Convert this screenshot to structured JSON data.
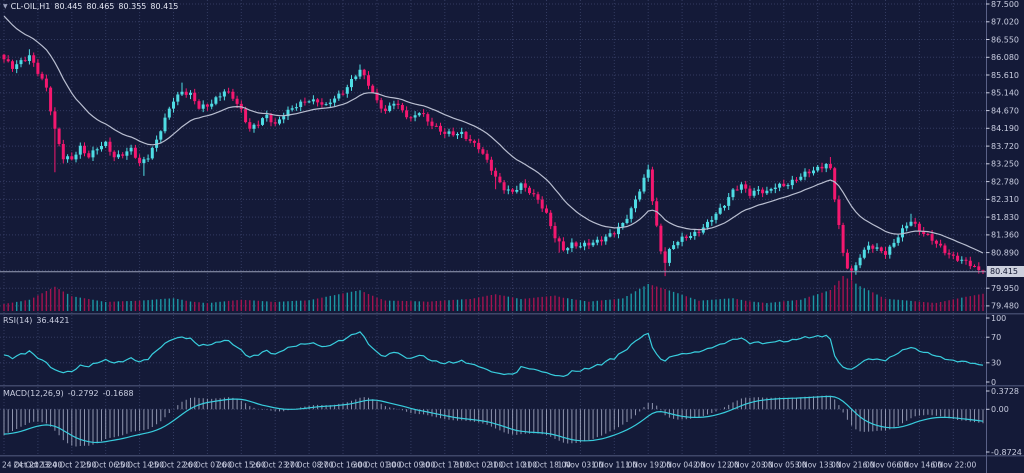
{
  "header": {
    "collapse_icon": "▼",
    "symbol_period": "CL-OIL,H1",
    "open": "80.445",
    "high": "80.465",
    "low": "80.355",
    "close": "80.415"
  },
  "price_axis": {
    "ticks": [
      "87.500",
      "87.020",
      "86.550",
      "86.080",
      "85.610",
      "85.140",
      "84.670",
      "84.190",
      "83.720",
      "83.250",
      "82.780",
      "82.310",
      "81.830",
      "81.360",
      "80.890",
      "79.950",
      "79.480"
    ],
    "badge": "80.415",
    "badge_slot": 15
  },
  "time_axis": {
    "labels": [
      "24 Oct 2023",
      "24 Oct 13:00",
      "24 Oct 21:00",
      "25 Oct 06:00",
      "25 Oct 14:00",
      "25 Oct 22:00",
      "26 Oct 07:00",
      "26 Oct 15:00",
      "26 Oct 23:00",
      "27 Oct 08:00",
      "27 Oct 16:00",
      "30 Oct 01:00",
      "30 Oct 09:00",
      "30 Oct 17:00",
      "31 Oct 02:00",
      "31 Oct 10:00",
      "31 Oct 18:00",
      "1 Nov 03:00",
      "1 Nov 11:00",
      "1 Nov 19:00",
      "2 Nov 04:00",
      "2 Nov 12:00",
      "2 Nov 20:00",
      "3 Nov 05:00",
      "3 Nov 13:00",
      "3 Nov 21:00",
      "6 Nov 06:00",
      "6 Nov 14:00",
      "6 Nov 22:00"
    ]
  },
  "rsi_pane": {
    "name": "RSI(14)",
    "value": "36.4421",
    "levels": [
      "100",
      "70",
      "30",
      "0"
    ]
  },
  "macd_pane": {
    "name": "MACD(12,26,9)",
    "macd_value": "-0.2792",
    "signal_value": "-0.1688",
    "axis": [
      "0.3728",
      "0.00",
      "-0.8724"
    ]
  },
  "colors": {
    "bg": "#141a38",
    "grid": "#333b61",
    "axis_text": "#c9cde0",
    "bull": "#4fdce4",
    "bear": "#f4186f",
    "vol_bull": "#1b97a4",
    "vol_bear": "#a3134f",
    "ma": "#b9bed0",
    "rsi_line": "#38cddd",
    "macd_line": "#38cddd",
    "macd_hist": "#aeb4cc",
    "price_line": "#9aa0b8",
    "badge_bg": "#ccd0dd",
    "badge_text": "#131832",
    "separator": "#3f4769"
  },
  "chart_data": {
    "type": "candlestick",
    "symbol": "CL-OIL",
    "timeframe": "H1",
    "title": "CL-OIL,H1 80.445 80.465 80.355 80.415",
    "last_ohlc": {
      "open": 80.445,
      "high": 80.465,
      "low": 80.355,
      "close": 80.415
    },
    "price_axis_range": [
      79.29,
      87.5
    ],
    "price_tick_step": 0.47,
    "current_price": 80.415,
    "candles_count": 232,
    "close_waypoints": [
      [
        0,
        86.0
      ],
      [
        2,
        85.82
      ],
      [
        4,
        86.02
      ],
      [
        6,
        86.12
      ],
      [
        8,
        85.66
      ],
      [
        10,
        85.28
      ],
      [
        12,
        84.2
      ],
      [
        14,
        83.42
      ],
      [
        16,
        83.36
      ],
      [
        18,
        83.72
      ],
      [
        20,
        83.5
      ],
      [
        22,
        83.66
      ],
      [
        24,
        83.78
      ],
      [
        26,
        83.48
      ],
      [
        28,
        83.55
      ],
      [
        30,
        83.62
      ],
      [
        32,
        83.26
      ],
      [
        34,
        83.5
      ],
      [
        36,
        83.9
      ],
      [
        38,
        84.42
      ],
      [
        40,
        84.96
      ],
      [
        42,
        85.22
      ],
      [
        44,
        85.1
      ],
      [
        46,
        84.72
      ],
      [
        48,
        84.82
      ],
      [
        50,
        85.02
      ],
      [
        52,
        85.18
      ],
      [
        54,
        85.0
      ],
      [
        56,
        84.7
      ],
      [
        58,
        84.22
      ],
      [
        60,
        84.32
      ],
      [
        62,
        84.52
      ],
      [
        64,
        84.34
      ],
      [
        66,
        84.6
      ],
      [
        68,
        84.7
      ],
      [
        70,
        84.86
      ],
      [
        72,
        85.0
      ],
      [
        74,
        84.92
      ],
      [
        76,
        84.76
      ],
      [
        78,
        85.02
      ],
      [
        80,
        85.2
      ],
      [
        82,
        85.46
      ],
      [
        84,
        85.72
      ],
      [
        86,
        85.4
      ],
      [
        88,
        84.96
      ],
      [
        90,
        84.62
      ],
      [
        92,
        84.88
      ],
      [
        94,
        84.7
      ],
      [
        96,
        84.48
      ],
      [
        98,
        84.62
      ],
      [
        100,
        84.38
      ],
      [
        102,
        84.26
      ],
      [
        104,
        84.1
      ],
      [
        106,
        84.02
      ],
      [
        108,
        84.06
      ],
      [
        110,
        83.92
      ],
      [
        112,
        83.7
      ],
      [
        114,
        83.3
      ],
      [
        116,
        82.92
      ],
      [
        118,
        82.66
      ],
      [
        120,
        82.5
      ],
      [
        122,
        82.68
      ],
      [
        124,
        82.56
      ],
      [
        126,
        82.36
      ],
      [
        128,
        81.9
      ],
      [
        130,
        81.3
      ],
      [
        132,
        81.04
      ],
      [
        134,
        81.16
      ],
      [
        136,
        81.06
      ],
      [
        138,
        81.14
      ],
      [
        140,
        81.26
      ],
      [
        142,
        81.34
      ],
      [
        144,
        81.42
      ],
      [
        146,
        81.68
      ],
      [
        148,
        82.1
      ],
      [
        150,
        82.58
      ],
      [
        152,
        83.08
      ],
      [
        153,
        82.3
      ],
      [
        154,
        81.6
      ],
      [
        155,
        81.0
      ],
      [
        156,
        80.72
      ],
      [
        157,
        80.98
      ],
      [
        158,
        81.12
      ],
      [
        160,
        81.26
      ],
      [
        162,
        81.4
      ],
      [
        164,
        81.52
      ],
      [
        166,
        81.66
      ],
      [
        168,
        81.92
      ],
      [
        170,
        82.24
      ],
      [
        172,
        82.58
      ],
      [
        174,
        82.66
      ],
      [
        176,
        82.46
      ],
      [
        178,
        82.62
      ],
      [
        180,
        82.52
      ],
      [
        182,
        82.64
      ],
      [
        184,
        82.7
      ],
      [
        186,
        82.84
      ],
      [
        188,
        82.94
      ],
      [
        190,
        83.02
      ],
      [
        192,
        83.16
      ],
      [
        194,
        83.3
      ],
      [
        195,
        83.12
      ],
      [
        196,
        82.35
      ],
      [
        197,
        81.6
      ],
      [
        198,
        80.85
      ],
      [
        199,
        80.55
      ],
      [
        200,
        80.45
      ],
      [
        201,
        80.6
      ],
      [
        202,
        80.86
      ],
      [
        204,
        81.06
      ],
      [
        206,
        81.0
      ],
      [
        208,
        80.94
      ],
      [
        210,
        81.2
      ],
      [
        212,
        81.48
      ],
      [
        214,
        81.76
      ],
      [
        216,
        81.56
      ],
      [
        218,
        81.36
      ],
      [
        220,
        81.12
      ],
      [
        222,
        80.96
      ],
      [
        224,
        80.84
      ],
      [
        226,
        80.7
      ],
      [
        228,
        80.58
      ],
      [
        230,
        80.46
      ],
      [
        231,
        80.415
      ]
    ],
    "wick_spikes": [
      {
        "i": 6,
        "h": 86.3
      },
      {
        "i": 12,
        "l": 83.05
      },
      {
        "i": 33,
        "l": 82.95
      },
      {
        "i": 42,
        "h": 85.42
      },
      {
        "i": 84,
        "h": 85.9
      },
      {
        "i": 116,
        "l": 82.6
      },
      {
        "i": 131,
        "l": 80.92
      },
      {
        "i": 152,
        "h": 83.25
      },
      {
        "i": 156,
        "l": 80.3
      },
      {
        "i": 195,
        "h": 83.45
      },
      {
        "i": 200,
        "l": 80.18
      },
      {
        "i": 214,
        "h": 81.95
      }
    ],
    "volume_waypoints": [
      [
        0,
        7
      ],
      [
        6,
        10
      ],
      [
        12,
        22
      ],
      [
        16,
        12
      ],
      [
        24,
        6
      ],
      [
        32,
        8
      ],
      [
        40,
        12
      ],
      [
        48,
        7
      ],
      [
        56,
        9
      ],
      [
        64,
        6
      ],
      [
        72,
        8
      ],
      [
        84,
        20
      ],
      [
        90,
        10
      ],
      [
        100,
        7
      ],
      [
        110,
        9
      ],
      [
        116,
        14
      ],
      [
        122,
        10
      ],
      [
        130,
        15
      ],
      [
        138,
        8
      ],
      [
        146,
        10
      ],
      [
        152,
        24
      ],
      [
        156,
        19
      ],
      [
        164,
        8
      ],
      [
        172,
        12
      ],
      [
        180,
        7
      ],
      [
        188,
        9
      ],
      [
        195,
        18
      ],
      [
        198,
        32
      ],
      [
        202,
        22
      ],
      [
        208,
        10
      ],
      [
        214,
        9
      ],
      [
        220,
        8
      ],
      [
        226,
        12
      ],
      [
        231,
        15
      ]
    ],
    "indicators": {
      "moving_average": {
        "type": "EMA",
        "period": 20
      },
      "rsi": {
        "period": 14,
        "current": 36.4421,
        "levels": [
          100,
          70,
          30,
          0
        ]
      },
      "macd": {
        "fast": 12,
        "slow": 26,
        "signal": 9,
        "current_macd": -0.2792,
        "current_signal": -0.1688,
        "axis_max": 0.3728,
        "axis_min": -0.8724
      }
    },
    "legend_position": "none",
    "grid": "dashed"
  }
}
